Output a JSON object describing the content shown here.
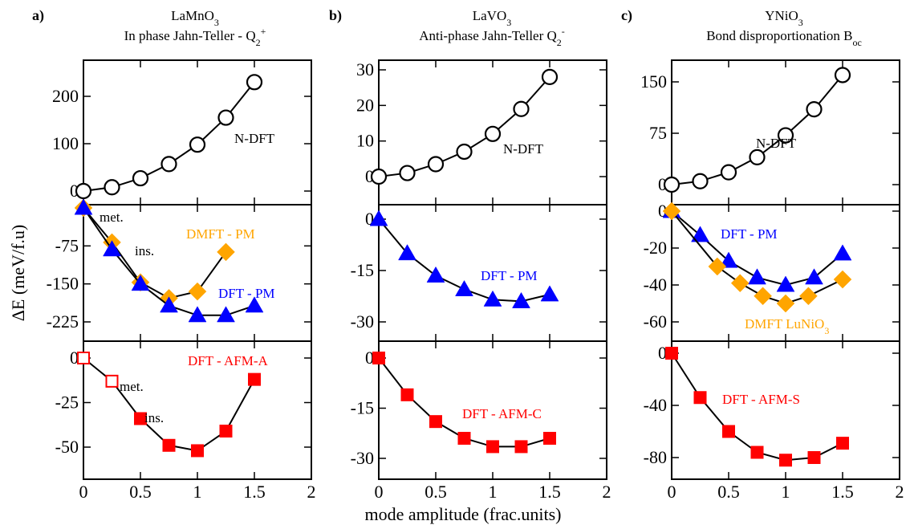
{
  "xlabel": "mode amplitude (frac.units)",
  "ylabel": "ΔE (meV/f.u)",
  "chart_data": [
    {
      "type": "line",
      "panel": "a)",
      "title_line1": "LaMnO",
      "title_line1_sub": "3",
      "title_line2": "In phase Jahn-Teller - Q",
      "title_line2_sub": "2",
      "title_line2_sup": "+",
      "xlim": [
        0,
        2
      ],
      "xticks": [
        "0",
        "0.5",
        "1",
        "1.5",
        "2"
      ],
      "subplots": [
        {
          "ylim": [
            -25,
            255
          ],
          "yticks": [
            "0",
            "100",
            "200"
          ],
          "series": [
            {
              "name": "N-DFT",
              "color": "#000000",
              "marker": "circle-open",
              "x": [
                0,
                0.25,
                0.5,
                0.75,
                1.0,
                1.25,
                1.5
              ],
              "y": [
                0,
                8,
                27,
                57,
                98,
                155,
                230
              ]
            }
          ]
        },
        {
          "ylim": [
            -255,
            0
          ],
          "yticks": [
            "-75",
            "-150",
            "-225"
          ],
          "annotations": [
            "met.",
            "ins."
          ],
          "series": [
            {
              "name": "DMFT - PM",
              "color": "#ffa500",
              "marker": "diamond",
              "x": [
                0,
                0.25,
                0.5,
                0.75,
                1.0,
                1.25
              ],
              "y": [
                0,
                -68,
                -147,
                -178,
                -165,
                -87
              ]
            },
            {
              "name": "DFT - PM",
              "color": "#0000ff",
              "marker": "triangle",
              "x": [
                0,
                0.25,
                0.5,
                0.75,
                1.0,
                1.25,
                1.5
              ],
              "y": [
                0,
                -82,
                -150,
                -193,
                -212,
                -212,
                -193
              ]
            }
          ]
        },
        {
          "ylim": [
            -62,
            8
          ],
          "yticks": [
            "0",
            "-25",
            "-50"
          ],
          "annotations": [
            "met.",
            "ins."
          ],
          "series": [
            {
              "name": "DFT - AFM-A",
              "color": "#ff0000",
              "marker": "square",
              "x": [
                0,
                0.25,
                0.5,
                0.75,
                1.0,
                1.25,
                1.5
              ],
              "y": [
                0,
                -13,
                -34,
                -49,
                -52,
                -41,
                -12
              ]
            }
          ]
        }
      ]
    },
    {
      "type": "line",
      "panel": "b)",
      "title_line1": "LaVO",
      "title_line1_sub": "3",
      "title_line2": "Anti-phase Jahn-Teller Q",
      "title_line2_sub": "2",
      "title_line2_sup": "-",
      "xlim": [
        0,
        2
      ],
      "xticks": [
        "0",
        "0.5",
        "1",
        "1.5",
        "2"
      ],
      "subplots": [
        {
          "ylim": [
            -3,
            30
          ],
          "yticks": [
            "0",
            "10",
            "20",
            "30"
          ],
          "series": [
            {
              "name": "N-DFT",
              "color": "#000000",
              "marker": "circle-open",
              "x": [
                0,
                0.25,
                0.5,
                0.75,
                1.0,
                1.25,
                1.5
              ],
              "y": [
                0,
                1,
                3.5,
                7,
                12,
                19,
                28
              ]
            }
          ]
        },
        {
          "ylim": [
            -35,
            1.5
          ],
          "yticks": [
            "0",
            "-15",
            "-30"
          ],
          "series": [
            {
              "name": "DFT - PM",
              "color": "#0000ff",
              "marker": "triangle",
              "x": [
                0,
                0.25,
                0.5,
                0.75,
                1.0,
                1.25,
                1.5
              ],
              "y": [
                0,
                -10,
                -16.5,
                -20.5,
                -23.5,
                -24,
                -22
              ]
            }
          ]
        },
        {
          "ylim": [
            -34,
            2
          ],
          "yticks": [
            "0",
            "-15",
            "-30"
          ],
          "series": [
            {
              "name": "DFT - AFM-C",
              "color": "#ff0000",
              "marker": "square",
              "x": [
                0,
                0.25,
                0.5,
                0.75,
                1.0,
                1.25,
                1.5
              ],
              "y": [
                0,
                -11,
                -19,
                -24,
                -26.5,
                -26.5,
                -24
              ]
            }
          ]
        }
      ]
    },
    {
      "type": "line",
      "panel": "c)",
      "title_line1": "YNiO",
      "title_line1_sub": "3",
      "title_line2": "Bond disproportionation B",
      "title_line2_sub": "oc",
      "title_line2_sup": "",
      "xlim": [
        0,
        2
      ],
      "xticks": [
        "0",
        "0.5",
        "1",
        "1.5",
        "2"
      ],
      "subplots": [
        {
          "ylim": [
            -15,
            175
          ],
          "yticks": [
            "0",
            "75",
            "150"
          ],
          "series": [
            {
              "name": "N-DFT",
              "color": "#000000",
              "marker": "circle-open",
              "x": [
                0,
                0.25,
                0.5,
                0.75,
                1.0,
                1.25,
                1.5
              ],
              "y": [
                0,
                5,
                18,
                40,
                72,
                110,
                160
              ]
            }
          ]
        },
        {
          "ylim": [
            -70,
            0
          ],
          "yticks": [
            "0",
            "-20",
            "-40",
            "-60"
          ],
          "series": [
            {
              "name": "DFT - PM",
              "color": "#0000ff",
              "marker": "triangle",
              "x": [
                0,
                0.25,
                0.5,
                0.75,
                1.0,
                1.25,
                1.5
              ],
              "y": [
                0,
                -13,
                -27,
                -36,
                -40,
                -36,
                -23
              ]
            },
            {
              "name": "DMFT LuNiO",
              "name_sub": "3",
              "color": "#ffa500",
              "marker": "diamond",
              "x": [
                0,
                0.4,
                0.6,
                0.8,
                1.0,
                1.2,
                1.5
              ],
              "y": [
                0,
                -30,
                -39,
                -46,
                -50,
                -46,
                -37
              ]
            }
          ]
        },
        {
          "ylim": [
            -95,
            5
          ],
          "yticks": [
            "0",
            "-40",
            "-80"
          ],
          "series": [
            {
              "name": "DFT - AFM-S",
              "color": "#ff0000",
              "marker": "square",
              "x": [
                0,
                0.25,
                0.5,
                0.75,
                1.0,
                1.25,
                1.5
              ],
              "y": [
                0,
                -34,
                -60,
                -76,
                -82,
                -80,
                -69
              ]
            }
          ]
        }
      ]
    }
  ]
}
